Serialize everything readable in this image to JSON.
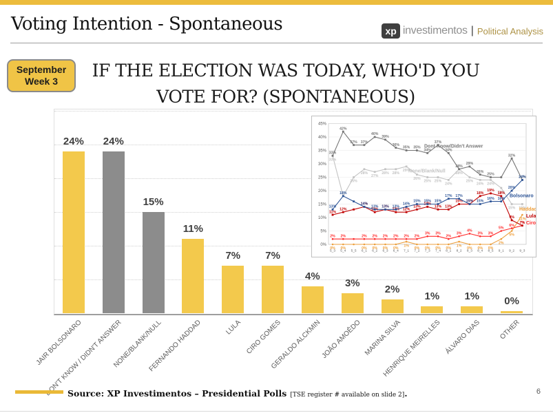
{
  "header": {
    "title": "Voting Intention - Spontaneous",
    "logo": {
      "xp": "xp",
      "investimentos": "investimentos",
      "separator": "|",
      "division": "Political Analysis"
    }
  },
  "badge": {
    "line1": "September",
    "line2": "Week 3"
  },
  "question_title": {
    "line1": "IF THE ELECTION WAS TODAY, WHO'D YOU",
    "line2": "VOTE FOR? (SPONTANEOUS)"
  },
  "footer": {
    "source_main": "Source: XP Investimentos – Presidential Polls",
    "source_note": "[TSE register # available on slide 2]",
    "source_end": ".",
    "page_number": "6"
  },
  "colors": {
    "gold": "#ECBC3D",
    "bar_yellow": "#F3C94C",
    "bar_gray": "#8C8C8C",
    "dont_know": "#757575",
    "none_blank": "#C3C3C3",
    "bolsonaro": "#2E5597",
    "lula": "#C00000",
    "ciro": "#FF2A2A",
    "haddad": "#ED9F3C"
  },
  "chart_data": [
    {
      "type": "bar",
      "title": "IF THE ELECTION WAS TODAY, WHO'D YOU VOTE FOR? (SPONTANEOUS)",
      "categories": [
        "JAIR BOLSONARO",
        "DON'T KNOW / DIDN'T ANSWER",
        "NONE/BLANK/NULL",
        "FERNANDO HADDAD",
        "LULA",
        "CIRO GOMES",
        "GERALDO ALCKMIN",
        "JOÃO AMOÊDO",
        "MARINA SILVA",
        "HENRIQUE MEIRELLES",
        "ÁLVARO DIAS",
        "OTHER"
      ],
      "values": [
        24,
        24,
        15,
        11,
        7,
        7,
        4,
        3,
        2,
        1,
        1,
        0
      ],
      "labels": [
        "24%",
        "24%",
        "15%",
        "11%",
        "7%",
        "7%",
        "4%",
        "3%",
        "2%",
        "1%",
        "1%",
        "0%"
      ],
      "bar_colors": [
        "#F3C94C",
        "#8C8C8C",
        "#8C8C8C",
        "#F3C94C",
        "#F3C94C",
        "#F3C94C",
        "#F3C94C",
        "#F3C94C",
        "#F3C94C",
        "#F3C94C",
        "#F3C94C",
        "#F3C94C"
      ],
      "ylim": [
        0,
        30
      ],
      "grid": "dotted horizontal every 5%",
      "xlabel": "",
      "ylabel": ""
    },
    {
      "type": "line",
      "x": [
        "5_3",
        "5_4",
        "5_5",
        "6_1",
        "6_2",
        "6_3",
        "6_4",
        "7_1",
        "7_2",
        "7_3",
        "7_4",
        "8_1",
        "8_2",
        "8_3",
        "8_4",
        "8_5",
        "9_1",
        "9_2",
        "9_3"
      ],
      "ylim": [
        0,
        45
      ],
      "yticks": [
        "0%",
        "5%",
        "10%",
        "15%",
        "20%",
        "25%",
        "30%",
        "35%",
        "40%",
        "45%"
      ],
      "grid": "horizontal every 5%",
      "legend_position": "inline annotations",
      "series": [
        {
          "name": "None/Blank/Null",
          "color": "#C3C3C3",
          "values": [
            33,
            18,
            25,
            28,
            27,
            28,
            28,
            29,
            26,
            25,
            25,
            24,
            28,
            25,
            24,
            24,
            21,
            15,
            15
          ],
          "labels": [
            "33%",
            "",
            "25%",
            "28%",
            "27%",
            "28%",
            "28%",
            "29%",
            "26%",
            "25%",
            "25%",
            "24%",
            "28%",
            "25%",
            "24%",
            "24%",
            "21%",
            "15%",
            "15%"
          ]
        },
        {
          "name": "Dont Know/Didn't Answer",
          "color": "#757575",
          "values": [
            33,
            42,
            37,
            37,
            40,
            39,
            36,
            35,
            35,
            34,
            37,
            34,
            28,
            29,
            26,
            25,
            25,
            32,
            24
          ],
          "labels": [
            "33%",
            "42%",
            "37%",
            "37%",
            "40%",
            "39%",
            "36%",
            "35%",
            "35%",
            "34%",
            "37%",
            "34%",
            "28%",
            "29%",
            "26%",
            "25%",
            "",
            "32%",
            "24%"
          ]
        },
        {
          "name": "Haddad",
          "color": "#ED9F3C",
          "values": [
            0,
            0,
            0,
            0,
            0,
            0,
            0,
            1,
            0,
            0,
            0,
            0,
            1,
            0,
            0,
            0,
            2,
            5,
            11
          ],
          "labels": [
            "0%",
            "0%",
            "",
            "0%",
            "0%",
            "0%",
            "0%",
            "1%",
            "0%",
            "0%",
            "0%",
            "0%",
            "1%",
            "0%",
            "0%",
            "0%",
            "2%",
            "5%",
            "11%"
          ]
        },
        {
          "name": "Ciro",
          "color": "#FF2A2A",
          "values": [
            2,
            2,
            2,
            2,
            2,
            2,
            2,
            2,
            2,
            3,
            3,
            2,
            3,
            4,
            3,
            3,
            5,
            6,
            7
          ],
          "labels": [
            "2%",
            "2%",
            "",
            "2%",
            "2%",
            "2%",
            "2%",
            "2%",
            "2%",
            "3%",
            "3%",
            "2%",
            "3%",
            "4%",
            "3%",
            "3%",
            "5%",
            "6%",
            "7%"
          ]
        },
        {
          "name": "Lula",
          "color": "#C00000",
          "values": [
            11,
            12,
            13,
            14,
            12,
            13,
            12,
            12,
            13,
            14,
            13,
            13,
            15,
            15,
            18,
            19,
            18,
            9,
            7
          ],
          "labels": [
            "11%",
            "12%",
            "",
            "14%",
            "12%",
            "13%",
            "12%",
            "12%",
            "13%",
            "14%",
            "13%",
            "13%",
            "15%",
            "15%",
            "18%",
            "19%",
            "18%",
            "9%",
            "7%"
          ]
        },
        {
          "name": "Bolsonaro",
          "color": "#2E5597",
          "values": [
            13,
            18,
            16,
            14,
            13,
            13,
            13,
            14,
            15,
            15,
            15,
            17,
            17,
            15,
            15,
            16,
            16,
            20,
            24
          ],
          "labels": [
            "13%",
            "18%",
            "",
            "14%",
            "13%",
            "13%",
            "13%",
            "14%",
            "15%",
            "15%",
            "15%",
            "17%",
            "17%",
            "15%",
            "15%",
            "16%",
            "16%",
            "20%",
            "24%"
          ]
        }
      ],
      "annotations": [
        {
          "text": "Dont Know/Didn't Answer",
          "color": "#757575"
        },
        {
          "text": "None/Blank/Null",
          "color": "#C3C3C3"
        },
        {
          "text": "Bolsonaro",
          "color": "#2E5597"
        },
        {
          "text": "Haddad",
          "color": "#ED9F3C"
        },
        {
          "text": "Lula",
          "color": "#C00000"
        },
        {
          "text": "Ciro",
          "color": "#FF2A2A"
        }
      ]
    }
  ]
}
